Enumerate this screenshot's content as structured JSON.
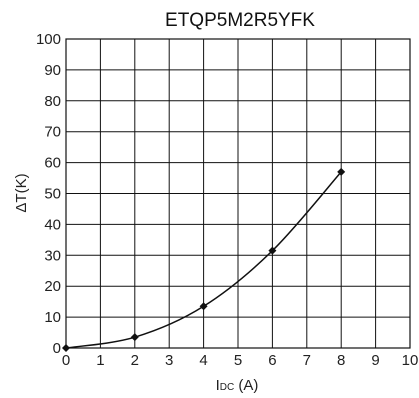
{
  "chart_data": {
    "type": "line",
    "title": "ETQP5M2R5YFK",
    "xlabel": {
      "main": "I",
      "sub": "DC",
      "unit": " (A)"
    },
    "ylabel": "ΔT(K)",
    "xlim": [
      0,
      10
    ],
    "ylim": [
      0,
      100
    ],
    "xticks": [
      "0",
      "1",
      "2",
      "3",
      "4",
      "5",
      "6",
      "7",
      "8",
      "9",
      "10"
    ],
    "yticks": [
      "0",
      "10",
      "20",
      "30",
      "40",
      "50",
      "60",
      "70",
      "80",
      "90",
      "100"
    ],
    "grid": true,
    "series": [
      {
        "x": [
          0,
          2,
          4,
          6,
          8
        ],
        "y": [
          0,
          3.5,
          13.5,
          31.5,
          57
        ]
      }
    ],
    "colors": {
      "line": "#111111",
      "grid": "#111111",
      "marker": "#111111"
    }
  }
}
